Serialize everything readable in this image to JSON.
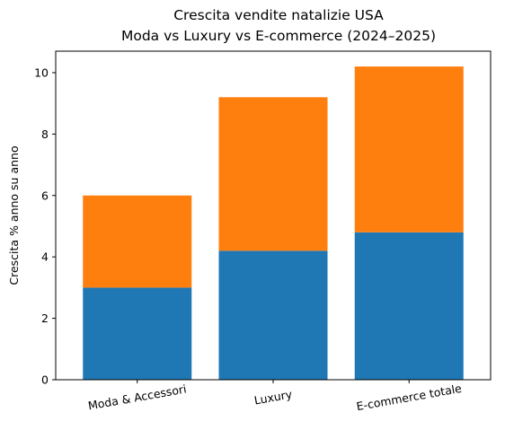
{
  "chart_data": {
    "type": "bar",
    "stacked": true,
    "title_line1": "Crescita vendite natalizie USA",
    "title_line2": "Moda vs Luxury vs E-commerce (2024–2025)",
    "xlabel": "",
    "ylabel": "Crescita % anno su anno",
    "categories": [
      "Moda & Accessori",
      "Luxury",
      "E-commerce totale"
    ],
    "series": [
      {
        "color": "#1f77b4",
        "values": [
          3.0,
          4.2,
          4.8
        ]
      },
      {
        "color": "#ff7f0e",
        "values": [
          3.0,
          5.0,
          5.4
        ]
      }
    ],
    "ylim": [
      0,
      10.7
    ],
    "yticks": [
      0,
      2,
      4,
      6,
      8,
      10
    ],
    "xtick_rotation_deg": 10,
    "grid": false,
    "legend": "none"
  }
}
